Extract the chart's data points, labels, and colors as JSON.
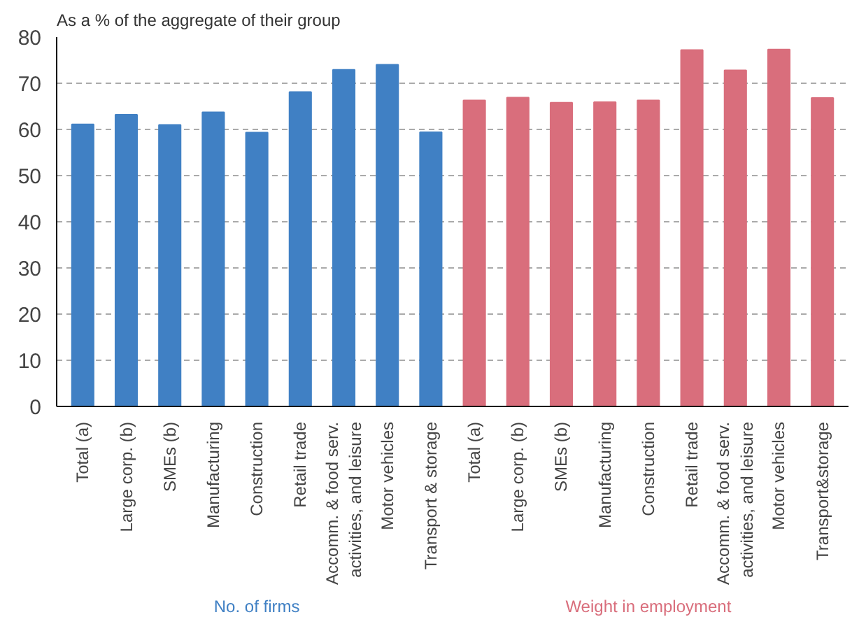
{
  "chart_data": {
    "type": "bar",
    "ylabel": "As a % of the aggregate of their group",
    "categories": [
      "Total (a)",
      "Large corp. (b)",
      "SMEs (b)",
      "Manufacturing",
      "Construction",
      "Retail trade",
      "Accomm. & food serv.\nactivities, and leisure",
      "Motor vehicles",
      "Transport & storage",
      "Total (a)",
      "Large corp. (b)",
      "SMEs (b)",
      "Manufacturing",
      "Construction",
      "Retail trade",
      "Accomm. & food serv.\nactivities, and leisure",
      "Motor vehicles",
      "Transport&storage"
    ],
    "series": [
      {
        "name": "No. of firms",
        "color": "#4080c4",
        "values": [
          61.1,
          63.2,
          61.0,
          63.7,
          59.3,
          68.1,
          72.9,
          74.0,
          59.4,
          null,
          null,
          null,
          null,
          null,
          null,
          null,
          null,
          null
        ]
      },
      {
        "name": "Weight in employment",
        "color": "#d96e7c",
        "values": [
          null,
          null,
          null,
          null,
          null,
          null,
          null,
          null,
          null,
          66.3,
          66.9,
          65.8,
          65.9,
          66.3,
          77.2,
          72.8,
          77.3,
          66.8
        ]
      }
    ],
    "ylim": [
      0,
      80
    ],
    "yticks": [
      0,
      10,
      20,
      30,
      40,
      50,
      60,
      70,
      80
    ],
    "grid": "y"
  }
}
